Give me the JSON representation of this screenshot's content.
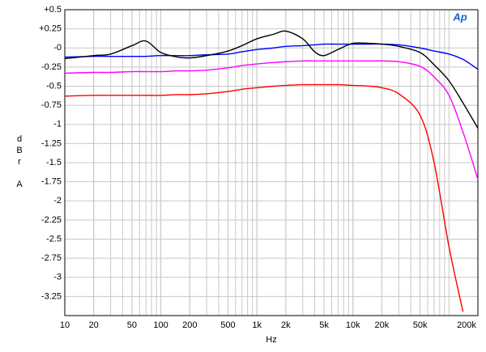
{
  "chart_data": {
    "type": "line",
    "logo": "Ap",
    "x_label": "Hz",
    "y_label": "dBr A",
    "xlog": true,
    "grid": true,
    "minor_grid": true,
    "xlim": [
      10,
      200000
    ],
    "ylim": [
      -3.5,
      0.5
    ],
    "xticks": [
      10,
      20,
      50,
      100,
      200,
      500,
      {
        "value": 1000,
        "label": "1k"
      },
      {
        "value": 2000,
        "label": "2k"
      },
      {
        "value": 5000,
        "label": "5k"
      },
      {
        "value": 10000,
        "label": "10k"
      },
      {
        "value": 20000,
        "label": "20k"
      },
      {
        "value": 50000,
        "label": "50k"
      },
      {
        "value": 200000,
        "label": "200k"
      }
    ],
    "yticks": [
      {
        "value": 0.5,
        "label": "+0.5"
      },
      {
        "value": 0.25,
        "label": "+0.25"
      },
      {
        "value": 0,
        "label": "-0"
      },
      -0.25,
      -0.5,
      -0.75,
      -1,
      -1.25,
      -1.5,
      -1.75,
      -2,
      -2.25,
      -2.5,
      -2.75,
      -3,
      -3.25
    ],
    "x": [
      10,
      20,
      30,
      50,
      70,
      100,
      150,
      200,
      300,
      500,
      700,
      1000,
      1500,
      2000,
      3000,
      4000,
      5000,
      7000,
      10000,
      15000,
      20000,
      30000,
      50000,
      70000,
      100000,
      140000,
      200000
    ],
    "series": [
      {
        "color": "#ff0000",
        "values": [
          -0.63,
          -0.62,
          -0.62,
          -0.62,
          -0.62,
          -0.62,
          -0.61,
          -0.61,
          -0.6,
          -0.57,
          -0.54,
          -0.52,
          -0.5,
          -0.49,
          -0.48,
          -0.48,
          -0.48,
          -0.48,
          -0.49,
          -0.5,
          -0.52,
          -0.6,
          -0.88,
          -1.5,
          -2.6,
          -3.45,
          null
        ]
      },
      {
        "color": "#ff00ff",
        "values": [
          -0.33,
          -0.32,
          -0.32,
          -0.31,
          -0.31,
          -0.31,
          -0.3,
          -0.3,
          -0.29,
          -0.26,
          -0.23,
          -0.21,
          -0.19,
          -0.18,
          -0.17,
          -0.17,
          -0.17,
          -0.17,
          -0.17,
          -0.17,
          -0.17,
          -0.18,
          -0.24,
          -0.38,
          -0.62,
          -1.1,
          -1.72
        ]
      },
      {
        "color": "#0000ff",
        "values": [
          -0.12,
          -0.11,
          -0.11,
          -0.11,
          -0.11,
          -0.1,
          -0.1,
          -0.1,
          -0.09,
          -0.08,
          -0.05,
          -0.02,
          0,
          0.02,
          0.03,
          0.04,
          0.05,
          0.05,
          0.05,
          0.05,
          0.05,
          0.04,
          0,
          -0.04,
          -0.08,
          -0.15,
          -0.28
        ]
      },
      {
        "color": "#000000",
        "values": [
          -0.14,
          -0.1,
          -0.08,
          0.03,
          0.09,
          -0.06,
          -0.12,
          -0.13,
          -0.1,
          -0.04,
          0.03,
          0.12,
          0.18,
          0.22,
          0.12,
          -0.05,
          -0.1,
          -0.02,
          0.06,
          0.06,
          0.05,
          0.02,
          -0.06,
          -0.22,
          -0.43,
          -0.72,
          -1.05
        ]
      }
    ]
  }
}
